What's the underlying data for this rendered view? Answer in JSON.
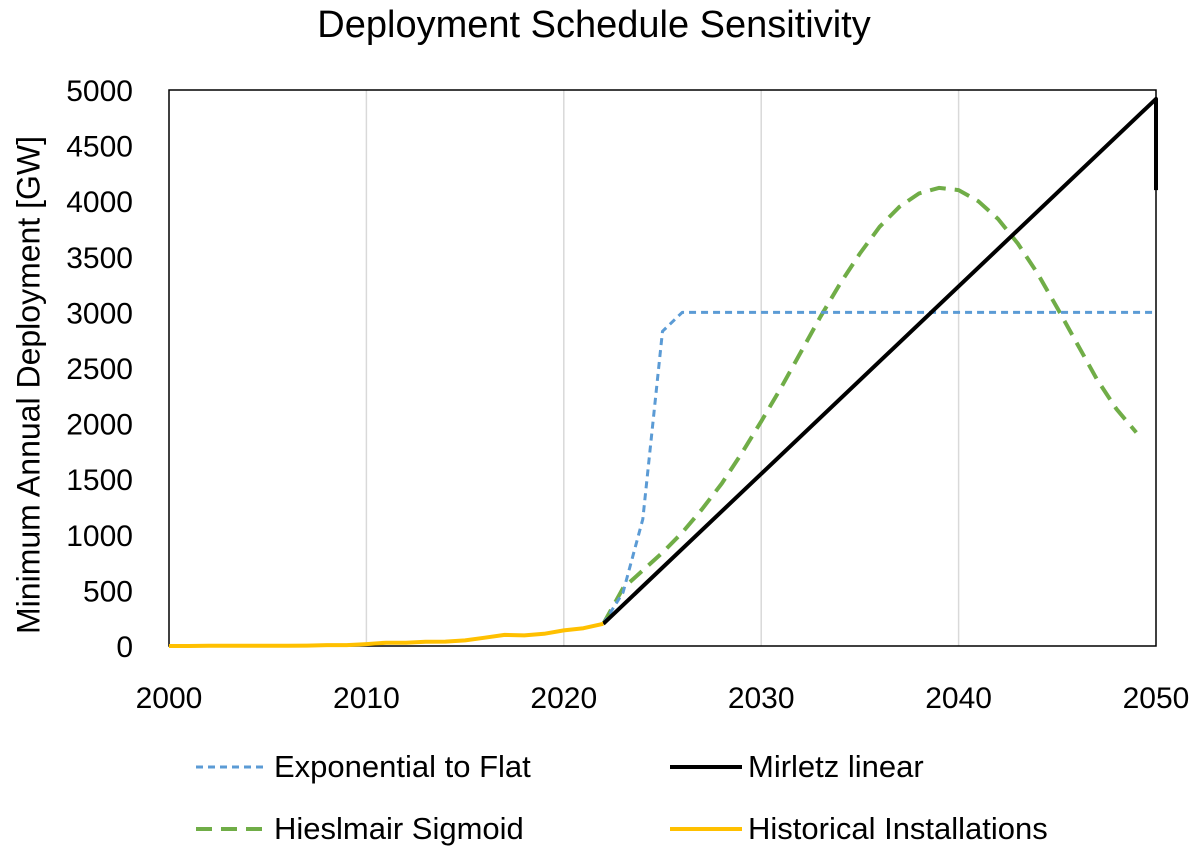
{
  "chart_data": {
    "type": "line",
    "title": "Deployment Schedule Sensitivity",
    "xlabel": "",
    "ylabel": "Minimum Annual Deployment [GW]",
    "xlim": [
      2000,
      2050
    ],
    "ylim": [
      0,
      5000
    ],
    "xticks": [
      2000,
      2010,
      2020,
      2030,
      2040,
      2050
    ],
    "yticks": [
      0,
      500,
      1000,
      1500,
      2000,
      2500,
      3000,
      3500,
      4000,
      4500,
      5000
    ],
    "grid": "vertical",
    "legend_position": "bottom",
    "series": [
      {
        "name": "Exponential to Flat",
        "color": "#5b9bd5",
        "style": "dashed",
        "x": [
          2022,
          2023,
          2024,
          2025,
          2026,
          2027,
          2030,
          2035,
          2040,
          2045,
          2050
        ],
        "y": [
          200,
          480,
          1140,
          2830,
          3000,
          3000,
          3000,
          3000,
          3000,
          3000,
          3000
        ]
      },
      {
        "name": "Mirletz linear",
        "color": "#000000",
        "style": "solid",
        "x": [
          2022,
          2050,
          2050
        ],
        "y": [
          200,
          4920,
          4100
        ]
      },
      {
        "name": "Hieslmair Sigmoid",
        "color": "#70ad47",
        "style": "dashed",
        "x": [
          2022,
          2023,
          2024,
          2025,
          2026,
          2027,
          2028,
          2029,
          2030,
          2031,
          2032,
          2033,
          2034,
          2035,
          2036,
          2037,
          2038,
          2039,
          2040,
          2041,
          2042,
          2043,
          2044,
          2045,
          2046,
          2047,
          2048,
          2049
        ],
        "y": [
          200,
          520,
          680,
          840,
          1020,
          1230,
          1460,
          1730,
          2020,
          2320,
          2640,
          2960,
          3260,
          3530,
          3770,
          3950,
          4070,
          4120,
          4100,
          4000,
          3840,
          3620,
          3350,
          3040,
          2720,
          2400,
          2130,
          1920
        ]
      },
      {
        "name": "Historical Installations",
        "color": "#ffc000",
        "style": "solid",
        "x": [
          2000,
          2001,
          2002,
          2003,
          2004,
          2005,
          2006,
          2007,
          2008,
          2009,
          2010,
          2011,
          2012,
          2013,
          2014,
          2015,
          2016,
          2017,
          2018,
          2019,
          2020,
          2021,
          2022
        ],
        "y": [
          0,
          0,
          2,
          2,
          2,
          2,
          3,
          4,
          8,
          8,
          17,
          30,
          30,
          38,
          40,
          50,
          75,
          100,
          95,
          110,
          140,
          160,
          200
        ]
      }
    ]
  }
}
